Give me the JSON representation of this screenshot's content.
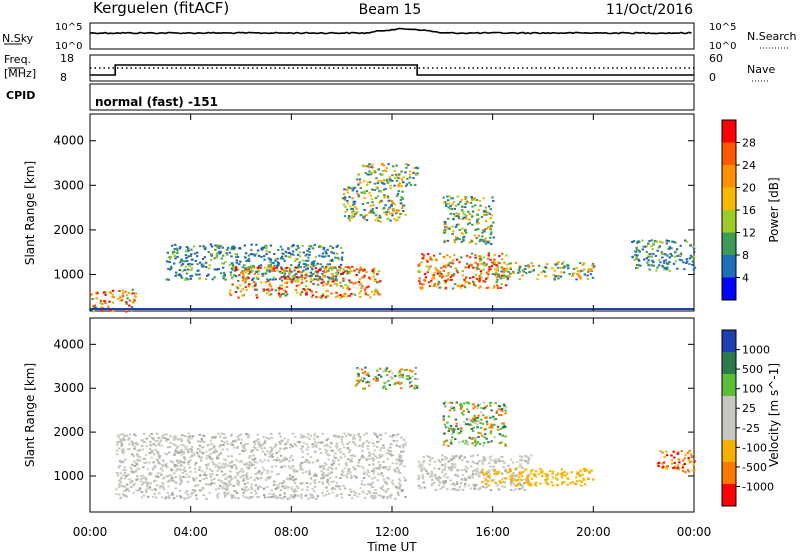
{
  "chart_data": {
    "type": "heatmap",
    "title": "Kerguelen (fitACF)",
    "beam_label": "Beam 15",
    "date_label": "11/Oct/2016",
    "xlabel": "Time UT",
    "x_ticks": [
      "00:00",
      "04:00",
      "08:00",
      "12:00",
      "16:00",
      "20:00",
      "00:00"
    ],
    "x_range_hours": [
      0,
      24
    ],
    "noise_panel": {
      "left_label": "N.Sky",
      "right_label": "N.Search",
      "left_ticks": [
        "10^5",
        "10^0"
      ],
      "right_ticks": [
        "10^5",
        "10^0"
      ]
    },
    "freq_panel": {
      "left_label_1": "Freq.",
      "left_label_2": "[MHz]",
      "left_ticks": [
        "18",
        "8"
      ],
      "right_label": "Nave",
      "right_ticks": [
        "60",
        "0"
      ],
      "freq_steps": [
        {
          "from": 0,
          "to": 1,
          "level": "low"
        },
        {
          "from": 1,
          "to": 13,
          "level": "high"
        },
        {
          "from": 13,
          "to": 24,
          "level": "low"
        }
      ]
    },
    "cpid": {
      "label": "CPID",
      "value": "normal (fast) -151"
    },
    "power_panel": {
      "ylabel": "Slant Range [km]",
      "y_ticks": [
        "4000",
        "3000",
        "2000",
        "1000"
      ],
      "y_tick_values": [
        4000,
        3000,
        2000,
        1000
      ],
      "yrange_km": [
        180,
        4600
      ],
      "colorbar_label": "Power [dB]",
      "colorbar_ticks": [
        "28",
        "24",
        "20",
        "16",
        "12",
        "8",
        "4"
      ],
      "colorbar_colors": [
        "#ff0000",
        "#ff5a00",
        "#ff9000",
        "#f7b800",
        "#9ccc2a",
        "#3f9a55",
        "#1f6fb8",
        "#0000ff"
      ],
      "regions": [
        {
          "t0": 0.0,
          "t1": 1.8,
          "r0": 180,
          "r1": 700,
          "level": "high"
        },
        {
          "t0": 3.0,
          "t1": 10.0,
          "r0": 900,
          "r1": 1700,
          "level": "low"
        },
        {
          "t0": 5.5,
          "t1": 11.5,
          "r0": 500,
          "r1": 1200,
          "level": "high"
        },
        {
          "t0": 10.0,
          "t1": 12.5,
          "r0": 2200,
          "r1": 3000,
          "level": "mid"
        },
        {
          "t0": 10.5,
          "t1": 13.0,
          "r0": 3000,
          "r1": 3500,
          "level": "mid"
        },
        {
          "t0": 13.0,
          "t1": 16.5,
          "r0": 700,
          "r1": 1500,
          "level": "high"
        },
        {
          "t0": 14.0,
          "t1": 16.0,
          "r0": 1700,
          "r1": 2800,
          "level": "mid"
        },
        {
          "t0": 16.0,
          "t1": 20.0,
          "r0": 900,
          "r1": 1300,
          "level": "mid"
        },
        {
          "t0": 21.5,
          "t1": 24.0,
          "r0": 1100,
          "r1": 1800,
          "level": "low"
        }
      ]
    },
    "velocity_panel": {
      "ylabel": "Slant Range [km]",
      "y_ticks": [
        "4000",
        "3000",
        "2000",
        "1000"
      ],
      "y_tick_values": [
        4000,
        3000,
        2000,
        1000
      ],
      "yrange_km": [
        180,
        4600
      ],
      "colorbar_label": "Velocity [m s^-1]",
      "colorbar_ticks": [
        "1000",
        "500",
        "100",
        "25",
        "-25",
        "-100",
        "-500",
        "-1000"
      ],
      "colorbar_colors": [
        "#1f3fb0",
        "#2d7a4a",
        "#5bbf3a",
        "#c8c8c0",
        "#c8c8c0",
        "#f6b000",
        "#ff7800",
        "#ff0000"
      ],
      "regions": [
        {
          "t0": 1.0,
          "t1": 12.5,
          "r0": 500,
          "r1": 2000,
          "level": "gray"
        },
        {
          "t0": 13.0,
          "t1": 17.5,
          "r0": 700,
          "r1": 1500,
          "level": "gray"
        },
        {
          "t0": 15.5,
          "t1": 20.0,
          "r0": 800,
          "r1": 1200,
          "level": "amber"
        },
        {
          "t0": 10.5,
          "t1": 13.0,
          "r0": 3000,
          "r1": 3500,
          "level": "green"
        },
        {
          "t0": 14.0,
          "t1": 16.5,
          "r0": 1700,
          "r1": 2700,
          "level": "green"
        },
        {
          "t0": 22.5,
          "t1": 24.0,
          "r0": 1100,
          "r1": 1600,
          "level": "red"
        }
      ]
    }
  }
}
